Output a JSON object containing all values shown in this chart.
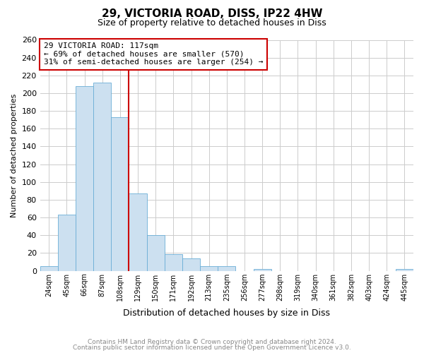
{
  "title": "29, VICTORIA ROAD, DISS, IP22 4HW",
  "subtitle": "Size of property relative to detached houses in Diss",
  "xlabel": "Distribution of detached houses by size in Diss",
  "ylabel": "Number of detached properties",
  "bar_labels": [
    "24sqm",
    "45sqm",
    "66sqm",
    "87sqm",
    "108sqm",
    "129sqm",
    "150sqm",
    "171sqm",
    "192sqm",
    "213sqm",
    "235sqm",
    "256sqm",
    "277sqm",
    "298sqm",
    "319sqm",
    "340sqm",
    "361sqm",
    "382sqm",
    "403sqm",
    "424sqm",
    "445sqm"
  ],
  "bar_values": [
    5,
    63,
    208,
    212,
    173,
    87,
    40,
    19,
    14,
    5,
    5,
    0,
    2,
    0,
    0,
    0,
    0,
    0,
    0,
    0,
    2
  ],
  "bar_color": "#cce0f0",
  "bar_edge_color": "#6aaed6",
  "property_line_x": 4.5,
  "property_line_color": "#cc0000",
  "annotation_title": "29 VICTORIA ROAD: 117sqm",
  "annotation_line1": "← 69% of detached houses are smaller (570)",
  "annotation_line2": "31% of semi-detached houses are larger (254) →",
  "annotation_box_color": "#ffffff",
  "annotation_box_edge": "#cc0000",
  "ylim": [
    0,
    260
  ],
  "yticks": [
    0,
    20,
    40,
    60,
    80,
    100,
    120,
    140,
    160,
    180,
    200,
    220,
    240,
    260
  ],
  "footer1": "Contains HM Land Registry data © Crown copyright and database right 2024.",
  "footer2": "Contains public sector information licensed under the Open Government Licence v3.0.",
  "background_color": "#ffffff",
  "grid_color": "#cccccc"
}
